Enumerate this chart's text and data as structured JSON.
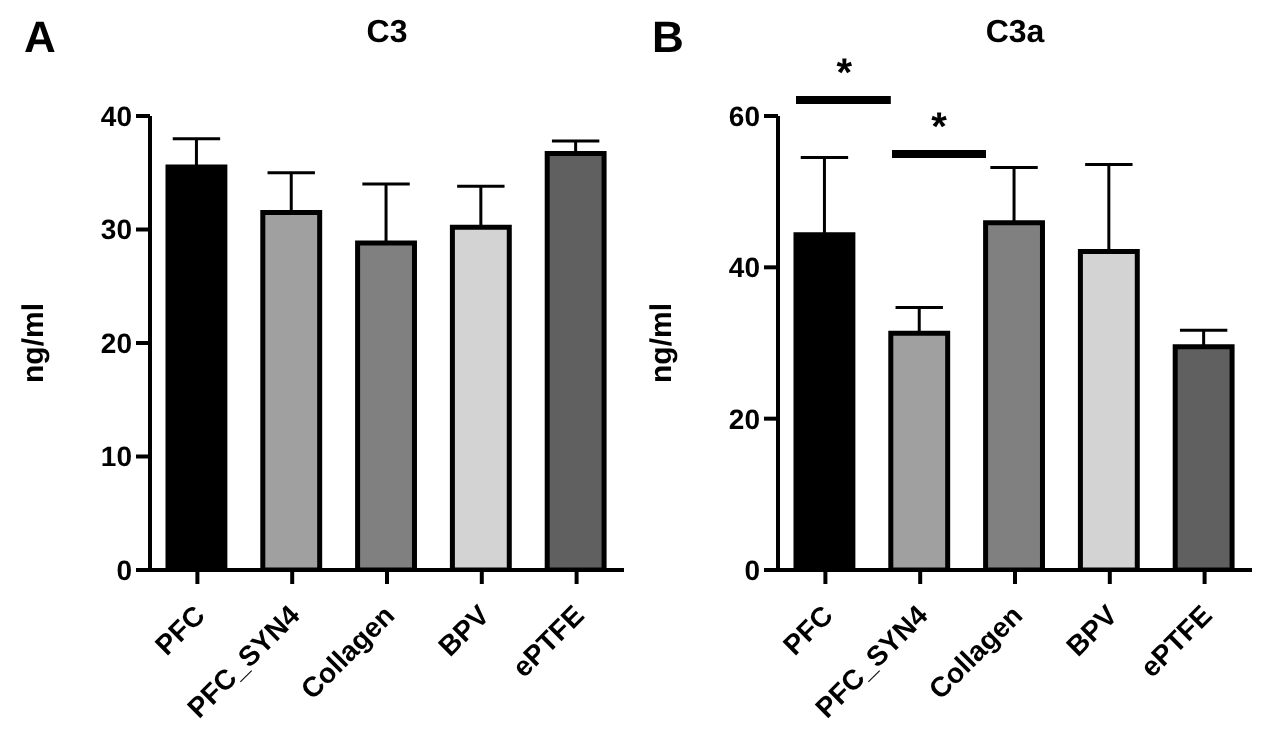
{
  "chart_data": [
    {
      "type": "bar",
      "title": "C3",
      "ylabel": "ng/ml",
      "annotations": [
        "A"
      ],
      "categories": [
        "PFC",
        "PFC_SYN4",
        "Collagen",
        "BPV",
        "ePTFE"
      ],
      "values": [
        35.5,
        31.5,
        28.8,
        30.2,
        36.7
      ],
      "colors": [
        "#000000",
        "#a0a0a0",
        "#808080",
        "#d3d3d3",
        "#606060"
      ],
      "errors": [
        [
          35.5,
          38
        ],
        [
          31.5,
          35
        ],
        [
          28.8,
          34
        ],
        [
          30.2,
          33.8
        ],
        [
          36.7,
          37.8
        ]
      ],
      "ylim": [
        0,
        40
      ],
      "yticks": [
        0,
        10,
        20,
        30,
        40
      ],
      "grid": false,
      "legend": false
    },
    {
      "type": "bar",
      "title": "C3a",
      "ylabel": "ng/ml",
      "annotations": [
        "B",
        "*",
        "*"
      ],
      "categories": [
        "PFC",
        "PFC_SYN4",
        "Collagen",
        "BPV",
        "ePTFE"
      ],
      "values": [
        44.3,
        31.3,
        45.9,
        42.1,
        29.5
      ],
      "colors": [
        "#000000",
        "#a0a0a0",
        "#808080",
        "#d3d3d3",
        "#606060"
      ],
      "errors": [
        [
          44.3,
          54.5
        ],
        [
          31.3,
          34.7
        ],
        [
          45.9,
          53.2
        ],
        [
          42.1,
          53.6
        ],
        [
          29.5,
          31.7
        ]
      ],
      "ylim": [
        0,
        60
      ],
      "yticks": [
        0,
        20,
        40,
        60
      ],
      "grid": false,
      "legend": false
    }
  ]
}
